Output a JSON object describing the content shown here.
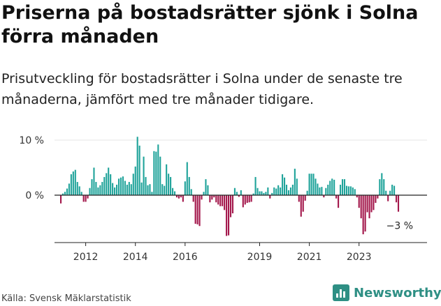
{
  "title": "Priserna på bostadsrätter sjönk i Solna förra månaden",
  "subtitle": "Prisutveckling för bostadsrätter i Solna under de senaste tre månaderna, jämfört med tre månader tidigare.",
  "source": "Källa: Svensk Mäklarstatistik",
  "brand": "Newsworthy",
  "colors": {
    "positive": "#1fa39a",
    "negative": "#a3174b"
  },
  "chart_data": {
    "type": "bar",
    "x_start": "2011-01",
    "y_unit": "%",
    "ylim": [
      -8.5,
      11
    ],
    "y_ticks": [
      {
        "value": 10,
        "label": "10 %"
      },
      {
        "value": 0,
        "label": "0 %"
      }
    ],
    "x_ticks": [
      {
        "index": 12,
        "label": "2012"
      },
      {
        "index": 36,
        "label": "2014"
      },
      {
        "index": 60,
        "label": "2016"
      },
      {
        "index": 96,
        "label": "2019"
      },
      {
        "index": 120,
        "label": "2021"
      },
      {
        "index": 144,
        "label": "2023"
      }
    ],
    "last_value_label": "−3 %",
    "values": [
      -1.5,
      0.3,
      0.6,
      1.2,
      2.1,
      3.8,
      4.3,
      4.6,
      2.4,
      1.6,
      0.6,
      -1.2,
      -1.2,
      -0.6,
      1.3,
      2.9,
      5.0,
      2.4,
      1.4,
      1.8,
      2.4,
      3.3,
      4.0,
      5.0,
      3.8,
      2.2,
      1.4,
      1.9,
      3.0,
      3.2,
      3.4,
      2.6,
      1.9,
      2.4,
      2.0,
      3.9,
      5.2,
      10.6,
      9.0,
      2.3,
      7.0,
      3.3,
      1.8,
      2.0,
      0.6,
      8.0,
      7.9,
      9.2,
      7.0,
      2.0,
      1.7,
      5.6,
      3.9,
      3.3,
      1.3,
      0.7,
      -0.4,
      -0.6,
      -0.4,
      -1.2,
      2.5,
      6.0,
      3.3,
      1.1,
      -1.2,
      -5.2,
      -5.3,
      -5.6,
      -0.8,
      0.6,
      2.9,
      1.8,
      -1.3,
      -0.8,
      -0.4,
      -1.3,
      -1.7,
      -2.0,
      -2.0,
      -2.7,
      -7.4,
      -7.3,
      -4.0,
      -3.3,
      1.3,
      0.6,
      -0.3,
      0.9,
      -2.2,
      -1.7,
      -1.4,
      -1.3,
      -1.2,
      0.3,
      3.3,
      1.3,
      0.7,
      0.7,
      0.4,
      0.6,
      1.4,
      -0.6,
      0.4,
      1.4,
      1.2,
      1.8,
      1.4,
      3.8,
      3.2,
      1.9,
      0.9,
      1.4,
      1.9,
      4.8,
      3.0,
      -1.2,
      -3.9,
      -3.0,
      -1.0,
      0.8,
      3.9,
      3.9,
      3.9,
      3.0,
      2.1,
      1.4,
      1.5,
      -0.4,
      1.3,
      1.9,
      2.6,
      3.0,
      2.8,
      -0.6,
      -2.3,
      1.9,
      2.9,
      2.9,
      1.7,
      1.6,
      1.6,
      1.4,
      1.1,
      -0.4,
      -2.3,
      -4.2,
      -7.1,
      -6.6,
      -3.1,
      -4.2,
      -3.1,
      -2.7,
      -1.4,
      -0.6,
      2.9,
      4.0,
      2.9,
      0.8,
      -1.1,
      0.8,
      1.9,
      1.7,
      -1.3,
      -3.0
    ]
  }
}
